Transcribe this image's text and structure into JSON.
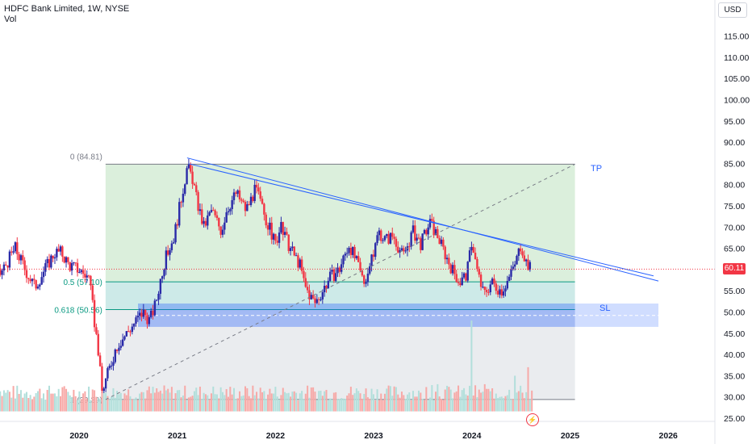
{
  "header": {
    "title": "HDFC Bank Limited, 1W, NYSE",
    "subtitle": "Vol"
  },
  "currency_button": "USD",
  "last_price": "60.11",
  "labels": {
    "tp": "TP",
    "sl": "SL"
  },
  "fib": [
    {
      "label": "0 (84.81)",
      "value": 84.81,
      "color": "#787b86"
    },
    {
      "label": "0.5 (57.10)",
      "value": 57.1,
      "color": "#089981"
    },
    {
      "label": "0.618 (50.56)",
      "value": 50.56,
      "color": "#089981"
    },
    {
      "label": "1 (29.39)",
      "value": 29.39,
      "color": "#787b86"
    }
  ],
  "colors": {
    "up": "#2a2aa8",
    "down": "#f23645",
    "fib_zone": "#c8e6c9",
    "sl_zone": "#2962ff",
    "trend": "#2962ff",
    "last_price_line": "#f23645"
  },
  "chart_data": {
    "type": "candlestick",
    "ylim": [
      23,
      121
    ],
    "xlim": [
      2019.12,
      2026.35
    ],
    "y_ticks": [
      "25.00",
      "30.00",
      "35.00",
      "40.00",
      "45.00",
      "50.00",
      "55.00",
      "60.00",
      "65.00",
      "70.00",
      "75.00",
      "80.00",
      "85.00",
      "90.00",
      "95.00",
      "100.00",
      "105.00",
      "110.00",
      "115.00"
    ],
    "x_ticks": [
      "2020",
      "2021",
      "2022",
      "2023",
      "2024",
      "2025",
      "2026"
    ],
    "price_path": [
      [
        2019.12,
        58
      ],
      [
        2019.2,
        59
      ],
      [
        2019.3,
        63
      ],
      [
        2019.35,
        65
      ],
      [
        2019.45,
        60
      ],
      [
        2019.55,
        56
      ],
      [
        2019.65,
        60
      ],
      [
        2019.75,
        64
      ],
      [
        2019.82,
        64
      ],
      [
        2019.9,
        61
      ],
      [
        2020.0,
        60
      ],
      [
        2020.1,
        58
      ],
      [
        2020.2,
        40
      ],
      [
        2020.23,
        31
      ],
      [
        2020.3,
        36
      ],
      [
        2020.38,
        42
      ],
      [
        2020.45,
        44
      ],
      [
        2020.55,
        47
      ],
      [
        2020.65,
        50
      ],
      [
        2020.72,
        48
      ],
      [
        2020.78,
        52
      ],
      [
        2020.85,
        60
      ],
      [
        2020.9,
        64
      ],
      [
        2020.97,
        68
      ],
      [
        2021.05,
        78
      ],
      [
        2021.1,
        84
      ],
      [
        2021.15,
        82
      ],
      [
        2021.2,
        76
      ],
      [
        2021.27,
        70
      ],
      [
        2021.35,
        74
      ],
      [
        2021.45,
        69
      ],
      [
        2021.5,
        74
      ],
      [
        2021.6,
        78
      ],
      [
        2021.7,
        74
      ],
      [
        2021.8,
        79
      ],
      [
        2021.9,
        72
      ],
      [
        2022.0,
        66
      ],
      [
        2022.05,
        70
      ],
      [
        2022.15,
        65
      ],
      [
        2022.25,
        61
      ],
      [
        2022.3,
        56
      ],
      [
        2022.4,
        52
      ],
      [
        2022.48,
        55
      ],
      [
        2022.55,
        58
      ],
      [
        2022.65,
        60
      ],
      [
        2022.75,
        66
      ],
      [
        2022.82,
        62
      ],
      [
        2022.9,
        57
      ],
      [
        2022.98,
        62
      ],
      [
        2023.05,
        69
      ],
      [
        2023.12,
        67
      ],
      [
        2023.2,
        68
      ],
      [
        2023.3,
        63
      ],
      [
        2023.4,
        69
      ],
      [
        2023.48,
        66
      ],
      [
        2023.57,
        71
      ],
      [
        2023.65,
        68
      ],
      [
        2023.72,
        64
      ],
      [
        2023.8,
        60
      ],
      [
        2023.88,
        57
      ],
      [
        2023.95,
        59
      ],
      [
        2024.0,
        67
      ],
      [
        2024.05,
        60
      ],
      [
        2024.12,
        54
      ],
      [
        2024.2,
        57
      ],
      [
        2024.3,
        55
      ],
      [
        2024.38,
        58
      ],
      [
        2024.45,
        62
      ],
      [
        2024.5,
        66
      ],
      [
        2024.55,
        62
      ],
      [
        2024.6,
        60.11
      ]
    ],
    "volume_spikes": [
      [
        2023.99,
        48
      ],
      [
        2024.43,
        35
      ],
      [
        2024.58,
        37
      ],
      [
        2024.29,
        30
      ],
      [
        2023.65,
        33
      ],
      [
        2023.48,
        31
      ],
      [
        2024.1,
        31
      ],
      [
        2024.14,
        33
      ]
    ]
  }
}
